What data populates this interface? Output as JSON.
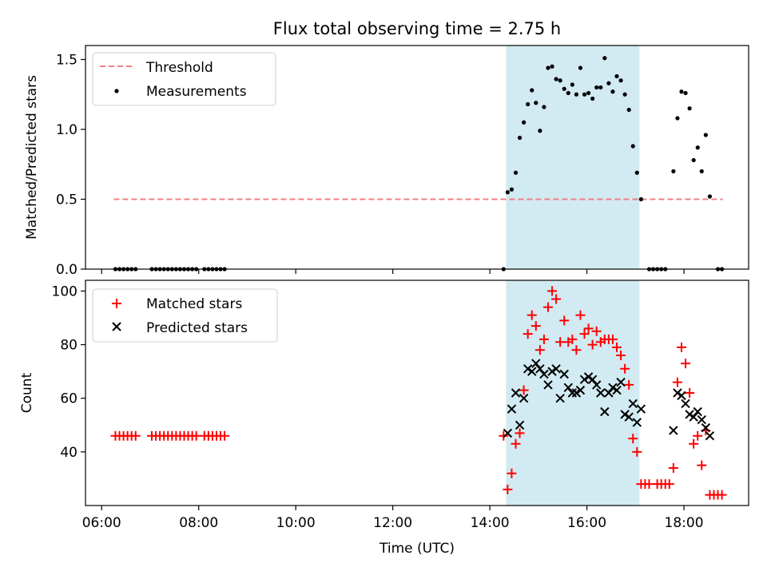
{
  "figure": {
    "title": "Flux total observing time = 2.75 h",
    "xlabel": "Time (UTC)",
    "x_ticks": [
      "06:00",
      "08:00",
      "10:00",
      "12:00",
      "14:00",
      "16:00",
      "18:00"
    ],
    "shade_color": "#add8e6"
  },
  "chart_data": [
    {
      "type": "scatter",
      "ylabel": "Matched/Predicted stars",
      "xlim": [
        "05:40",
        "19:20"
      ],
      "ylim": [
        0,
        1.6
      ],
      "y_ticks": [
        "0.0",
        "0.5",
        "1.0",
        "1.5"
      ],
      "shaded_interval": [
        "14:20",
        "17:05"
      ],
      "legend": {
        "position": "upper-left",
        "entries": [
          "Threshold",
          "Measurements"
        ]
      },
      "threshold": {
        "name": "Threshold",
        "value": 0.5,
        "x_range": [
          "06:15",
          "18:48"
        ],
        "color": "#f08080",
        "style": "dashed"
      },
      "series": [
        {
          "name": "Measurements",
          "color": "#000000",
          "marker": "dot",
          "points": [
            [
              "06:17",
              0
            ],
            [
              "06:22",
              0
            ],
            [
              "06:27",
              0
            ],
            [
              "06:32",
              0
            ],
            [
              "06:37",
              0
            ],
            [
              "06:42",
              0
            ],
            [
              "07:02",
              0
            ],
            [
              "07:07",
              0
            ],
            [
              "07:12",
              0
            ],
            [
              "07:17",
              0
            ],
            [
              "07:22",
              0
            ],
            [
              "07:27",
              0
            ],
            [
              "07:32",
              0
            ],
            [
              "07:37",
              0
            ],
            [
              "07:42",
              0
            ],
            [
              "07:47",
              0
            ],
            [
              "07:52",
              0
            ],
            [
              "07:57",
              0
            ],
            [
              "08:07",
              0
            ],
            [
              "08:12",
              0
            ],
            [
              "08:17",
              0
            ],
            [
              "08:22",
              0
            ],
            [
              "08:27",
              0
            ],
            [
              "08:32",
              0
            ],
            [
              "14:17",
              0
            ],
            [
              "14:22",
              0.55
            ],
            [
              "14:27",
              0.57
            ],
            [
              "14:32",
              0.69
            ],
            [
              "14:37",
              0.94
            ],
            [
              "14:42",
              1.05
            ],
            [
              "14:47",
              1.18
            ],
            [
              "14:52",
              1.28
            ],
            [
              "14:57",
              1.19
            ],
            [
              "15:02",
              0.99
            ],
            [
              "15:07",
              1.16
            ],
            [
              "15:12",
              1.44
            ],
            [
              "15:17",
              1.45
            ],
            [
              "15:22",
              1.36
            ],
            [
              "15:27",
              1.35
            ],
            [
              "15:32",
              1.29
            ],
            [
              "15:37",
              1.26
            ],
            [
              "15:42",
              1.32
            ],
            [
              "15:47",
              1.25
            ],
            [
              "15:52",
              1.44
            ],
            [
              "15:57",
              1.25
            ],
            [
              "16:02",
              1.26
            ],
            [
              "16:07",
              1.22
            ],
            [
              "16:12",
              1.3
            ],
            [
              "16:17",
              1.3
            ],
            [
              "16:22",
              1.51
            ],
            [
              "16:27",
              1.33
            ],
            [
              "16:32",
              1.27
            ],
            [
              "16:37",
              1.38
            ],
            [
              "16:42",
              1.35
            ],
            [
              "16:47",
              1.25
            ],
            [
              "16:52",
              1.14
            ],
            [
              "16:57",
              0.88
            ],
            [
              "17:02",
              0.69
            ],
            [
              "17:07",
              0.5
            ],
            [
              "17:17",
              0
            ],
            [
              "17:22",
              0
            ],
            [
              "17:27",
              0
            ],
            [
              "17:32",
              0
            ],
            [
              "17:37",
              0
            ],
            [
              "17:47",
              0.7
            ],
            [
              "17:52",
              1.08
            ],
            [
              "17:57",
              1.27
            ],
            [
              "18:02",
              1.26
            ],
            [
              "18:07",
              1.15
            ],
            [
              "18:12",
              0.78
            ],
            [
              "18:17",
              0.87
            ],
            [
              "18:22",
              0.7
            ],
            [
              "18:27",
              0.96
            ],
            [
              "18:32",
              0.52
            ],
            [
              "18:42",
              0
            ],
            [
              "18:47",
              0
            ]
          ]
        }
      ]
    },
    {
      "type": "scatter",
      "ylabel": "Count",
      "xlim": [
        "05:40",
        "19:20"
      ],
      "ylim": [
        20,
        104
      ],
      "y_ticks": [
        "40",
        "60",
        "80",
        "100"
      ],
      "shaded_interval": [
        "14:20",
        "17:05"
      ],
      "legend": {
        "position": "upper-left",
        "entries": [
          "Matched stars",
          "Predicted stars"
        ]
      },
      "series": [
        {
          "name": "Matched stars",
          "color": "#ff0000",
          "marker": "plus",
          "points": [
            [
              "06:17",
              46
            ],
            [
              "06:22",
              46
            ],
            [
              "06:27",
              46
            ],
            [
              "06:32",
              46
            ],
            [
              "06:37",
              46
            ],
            [
              "06:42",
              46
            ],
            [
              "07:02",
              46
            ],
            [
              "07:07",
              46
            ],
            [
              "07:12",
              46
            ],
            [
              "07:17",
              46
            ],
            [
              "07:22",
              46
            ],
            [
              "07:27",
              46
            ],
            [
              "07:32",
              46
            ],
            [
              "07:37",
              46
            ],
            [
              "07:42",
              46
            ],
            [
              "07:47",
              46
            ],
            [
              "07:52",
              46
            ],
            [
              "07:57",
              46
            ],
            [
              "08:07",
              46
            ],
            [
              "08:12",
              46
            ],
            [
              "08:17",
              46
            ],
            [
              "08:22",
              46
            ],
            [
              "08:27",
              46
            ],
            [
              "08:32",
              46
            ],
            [
              "14:17",
              46
            ],
            [
              "14:22",
              26
            ],
            [
              "14:27",
              32
            ],
            [
              "14:32",
              43
            ],
            [
              "14:37",
              47
            ],
            [
              "14:42",
              63
            ],
            [
              "14:47",
              84
            ],
            [
              "14:52",
              91
            ],
            [
              "14:57",
              87
            ],
            [
              "15:02",
              78
            ],
            [
              "15:07",
              82
            ],
            [
              "15:12",
              94
            ],
            [
              "15:17",
              100
            ],
            [
              "15:22",
              97
            ],
            [
              "15:27",
              81
            ],
            [
              "15:32",
              89
            ],
            [
              "15:37",
              81
            ],
            [
              "15:42",
              82
            ],
            [
              "15:47",
              78
            ],
            [
              "15:52",
              91
            ],
            [
              "15:57",
              84
            ],
            [
              "16:02",
              86
            ],
            [
              "16:07",
              80
            ],
            [
              "16:12",
              85
            ],
            [
              "16:17",
              81
            ],
            [
              "16:22",
              82
            ],
            [
              "16:27",
              82
            ],
            [
              "16:32",
              82
            ],
            [
              "16:37",
              79
            ],
            [
              "16:42",
              76
            ],
            [
              "16:47",
              71
            ],
            [
              "16:52",
              65
            ],
            [
              "16:57",
              45
            ],
            [
              "17:02",
              40
            ],
            [
              "17:07",
              28
            ],
            [
              "17:12",
              28
            ],
            [
              "17:17",
              28
            ],
            [
              "17:27",
              28
            ],
            [
              "17:32",
              28
            ],
            [
              "17:37",
              28
            ],
            [
              "17:42",
              28
            ],
            [
              "17:47",
              34
            ],
            [
              "17:52",
              66
            ],
            [
              "17:57",
              79
            ],
            [
              "18:02",
              73
            ],
            [
              "18:07",
              62
            ],
            [
              "18:12",
              43
            ],
            [
              "18:17",
              46
            ],
            [
              "18:22",
              35
            ],
            [
              "18:27",
              48
            ],
            [
              "18:32",
              24
            ],
            [
              "18:37",
              24
            ],
            [
              "18:42",
              24
            ],
            [
              "18:47",
              24
            ]
          ]
        },
        {
          "name": "Predicted stars",
          "color": "#000000",
          "marker": "x",
          "points": [
            [
              "14:22",
              47
            ],
            [
              "14:27",
              56
            ],
            [
              "14:32",
              62
            ],
            [
              "14:37",
              50
            ],
            [
              "14:42",
              60
            ],
            [
              "14:47",
              71
            ],
            [
              "14:52",
              70
            ],
            [
              "14:57",
              73
            ],
            [
              "15:02",
              71
            ],
            [
              "15:07",
              69
            ],
            [
              "15:12",
              65
            ],
            [
              "15:17",
              70
            ],
            [
              "15:22",
              71
            ],
            [
              "15:27",
              60
            ],
            [
              "15:32",
              69
            ],
            [
              "15:37",
              64
            ],
            [
              "15:42",
              62
            ],
            [
              "15:47",
              62
            ],
            [
              "15:52",
              63
            ],
            [
              "15:57",
              67
            ],
            [
              "16:02",
              68
            ],
            [
              "16:07",
              67
            ],
            [
              "16:12",
              65
            ],
            [
              "16:17",
              62
            ],
            [
              "16:22",
              55
            ],
            [
              "16:27",
              62
            ],
            [
              "16:32",
              64
            ],
            [
              "16:37",
              63
            ],
            [
              "16:42",
              66
            ],
            [
              "16:47",
              54
            ],
            [
              "16:52",
              53
            ],
            [
              "16:57",
              58
            ],
            [
              "17:02",
              51
            ],
            [
              "17:07",
              56
            ],
            [
              "17:47",
              48
            ],
            [
              "17:52",
              62
            ],
            [
              "17:57",
              61
            ],
            [
              "18:02",
              58
            ],
            [
              "18:07",
              54
            ],
            [
              "18:12",
              53
            ],
            [
              "18:17",
              55
            ],
            [
              "18:22",
              52
            ],
            [
              "18:27",
              49
            ],
            [
              "18:32",
              46
            ]
          ]
        }
      ]
    }
  ]
}
